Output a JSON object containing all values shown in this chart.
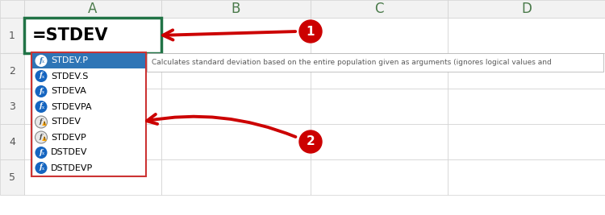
{
  "col_labels": [
    "A",
    "B",
    "C",
    "D"
  ],
  "row_labels": [
    "1",
    "2",
    "3",
    "4",
    "5"
  ],
  "cell_text": "=STDEV",
  "dropdown_items": [
    "STDEV.P",
    "STDEV.S",
    "STDEVA",
    "STDEVPA",
    "STDEV",
    "STDEVP",
    "DSTDEV",
    "DSTDEVP"
  ],
  "tooltip_text": "Calculates standard deviation based on the entire population given as arguments (ignores logical values and",
  "highlighted_row": 0,
  "highlighted_bg": "#2E75B6",
  "highlighted_fg": "#FFFFFF",
  "dropdown_bg": "#FFFFFF",
  "dropdown_border": "#CC3333",
  "grid_color": "#D0D0D0",
  "header_bg": "#F2F2F2",
  "header_text_color": "#4A7A4A",
  "cell_border_active": "#217346",
  "row_header_color": "#555555",
  "tooltip_bg": "#FFFFFF",
  "tooltip_border": "#AAAAAA",
  "tooltip_text_color": "#5A5A5A",
  "arrow_color": "#CC0000",
  "background": "#FFFFFF",
  "icon_blue": "#1565C0",
  "icon_orange": "#E07010"
}
